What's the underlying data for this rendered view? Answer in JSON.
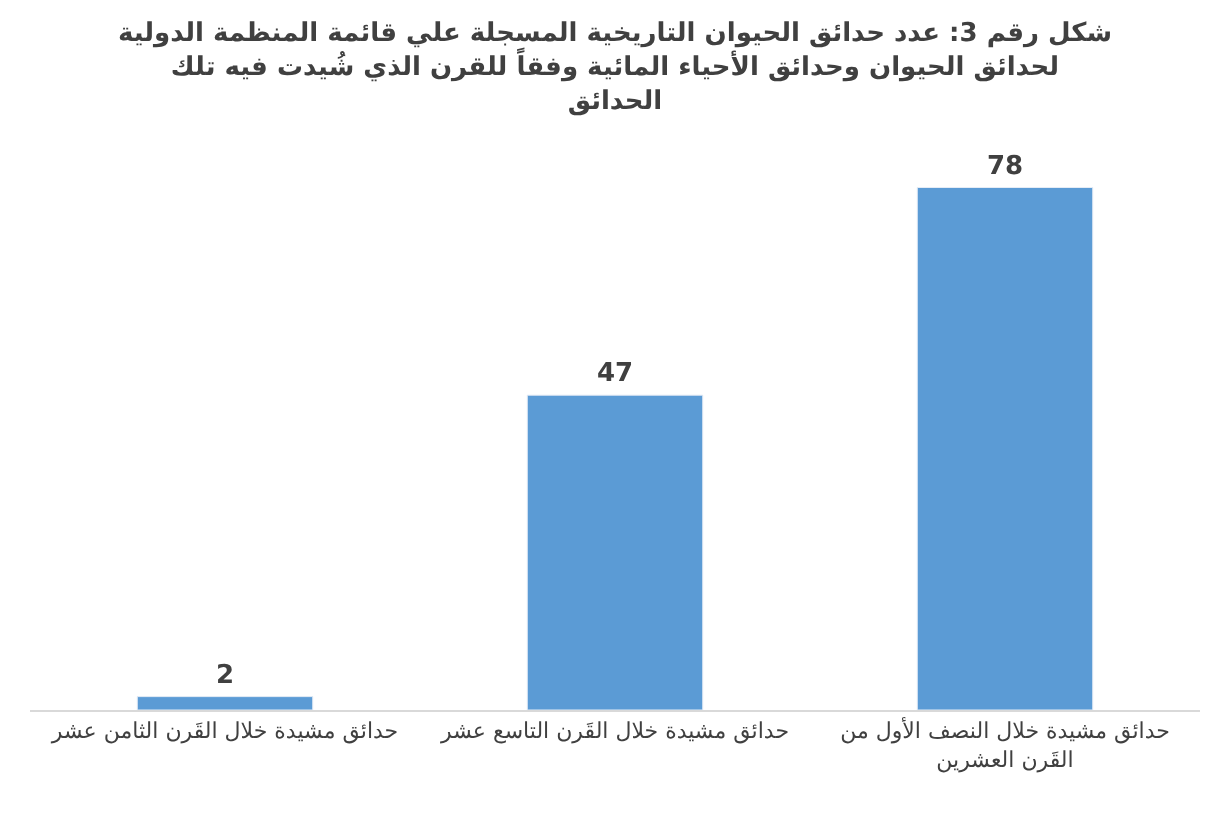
{
  "chart_data": {
    "type": "bar",
    "title": "شكل رقم 3: عدد حدائق الحيوان التاريخية المسجلة علي قائمة المنظمة الدولية لحدائق الحيوان وحدائق الأحياء المائية وفقاً للقرن الذي شُيدت فيه تلك الحدائق",
    "categories": [
      "حدائق مشيدة خلال القَرن الثامن عشر",
      "حدائق مشيدة خلال القَرن التاسع عشر",
      "حدائق مشيدة خلال النصف الأول من القَرن العشرين"
    ],
    "values": [
      2,
      47,
      78
    ],
    "color": "#5b9bd5",
    "data_labels": true
  }
}
